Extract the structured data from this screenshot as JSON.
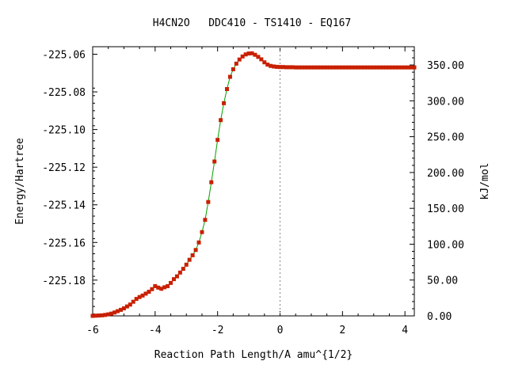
{
  "chart_data": {
    "type": "line",
    "title": "H4CN2O   DDC410 - TS1410 - EQ167",
    "xlabel": "Reaction Path Length/A amu^{1/2}",
    "ylabel": "Energy/Hartree",
    "y2label": "kJ/mol",
    "xlim": [
      -6.0,
      4.3
    ],
    "ylim": [
      -225.199,
      -225.056
    ],
    "y2lim": [
      0.0,
      375.5
    ],
    "x_ticks": [
      -6,
      -4,
      -2,
      0,
      2,
      4
    ],
    "x_tick_labels": [
      "-6",
      "-4",
      "-2",
      "0",
      "2",
      "4"
    ],
    "y_ticks": [
      -225.06,
      -225.08,
      -225.1,
      -225.12,
      -225.14,
      -225.16,
      -225.18
    ],
    "y_tick_labels": [
      "-225.06",
      "-225.08",
      "-225.10",
      "-225.12",
      "-225.14",
      "-225.16",
      "-225.18"
    ],
    "y2_ticks": [
      0,
      50,
      100,
      150,
      200,
      250,
      300,
      350
    ],
    "y2_tick_labels": [
      "0.00",
      "50.00",
      "100.00",
      "150.00",
      "200.00",
      "250.00",
      "300.00",
      "350.00"
    ],
    "ts_marker_x": 0.0,
    "grid": false,
    "line_color": "#00a000",
    "marker_color": "#c82000",
    "series": [
      {
        "x": [
          -6.0,
          -5.9,
          -5.8,
          -5.7,
          -5.6,
          -5.5,
          -5.4,
          -5.3,
          -5.2,
          -5.1,
          -5.0,
          -4.9,
          -4.8,
          -4.7,
          -4.6,
          -4.5,
          -4.4,
          -4.3,
          -4.2,
          -4.1,
          -4.0,
          -3.9,
          -3.8,
          -3.7,
          -3.6,
          -3.5,
          -3.4,
          -3.3,
          -3.2,
          -3.1,
          -3.0,
          -2.9,
          -2.8,
          -2.7,
          -2.6,
          -2.5,
          -2.4,
          -2.3,
          -2.2,
          -2.1,
          -2.0,
          -1.9,
          -1.8,
          -1.7,
          -1.6,
          -1.5,
          -1.4,
          -1.3,
          -1.2,
          -1.1,
          -1.0,
          -0.9,
          -0.8,
          -0.7,
          -0.6,
          -0.5,
          -0.4,
          -0.3,
          -0.2,
          -0.1,
          0.0,
          0.1,
          0.2,
          0.3,
          0.4,
          0.5,
          0.6,
          0.7,
          0.8,
          0.9,
          1.0,
          1.1,
          1.2,
          1.3,
          1.4,
          1.5,
          1.6,
          1.7,
          1.8,
          1.9,
          2.0,
          2.1,
          2.2,
          2.3,
          2.4,
          2.5,
          2.6,
          2.7,
          2.8,
          2.9,
          3.0,
          3.1,
          3.2,
          3.3,
          3.4,
          3.5,
          3.6,
          3.7,
          3.8,
          3.9,
          4.0,
          4.1,
          4.2,
          4.3
        ],
        "y": [
          -225.199,
          -225.1989,
          -225.1988,
          -225.1987,
          -225.1985,
          -225.1982,
          -225.1978,
          -225.1972,
          -225.1965,
          -225.1958,
          -225.195,
          -225.194,
          -225.193,
          -225.1915,
          -225.19,
          -225.189,
          -225.1882,
          -225.1872,
          -225.1862,
          -225.1848,
          -225.1832,
          -225.184,
          -225.1846,
          -225.1838,
          -225.1832,
          -225.1815,
          -225.1795,
          -225.178,
          -225.176,
          -225.174,
          -225.1718,
          -225.1692,
          -225.1668,
          -225.164,
          -225.16,
          -225.1545,
          -225.148,
          -225.1385,
          -225.128,
          -225.117,
          -225.1055,
          -225.095,
          -225.086,
          -225.0785,
          -225.072,
          -225.068,
          -225.065,
          -225.0628,
          -225.0612,
          -225.0601,
          -225.0596,
          -225.0595,
          -225.0603,
          -225.0614,
          -225.0627,
          -225.0643,
          -225.0655,
          -225.0662,
          -225.0665,
          -225.0667,
          -225.0668,
          -225.0668,
          -225.0669,
          -225.0669,
          -225.0669,
          -225.067,
          -225.067,
          -225.067,
          -225.067,
          -225.067,
          -225.067,
          -225.067,
          -225.067,
          -225.067,
          -225.067,
          -225.067,
          -225.067,
          -225.067,
          -225.067,
          -225.067,
          -225.067,
          -225.067,
          -225.067,
          -225.067,
          -225.067,
          -225.067,
          -225.067,
          -225.067,
          -225.067,
          -225.067,
          -225.067,
          -225.067,
          -225.067,
          -225.067,
          -225.067,
          -225.067,
          -225.067,
          -225.067,
          -225.067,
          -225.067,
          -225.067,
          -225.067,
          -225.067,
          -225.067
        ]
      }
    ]
  }
}
